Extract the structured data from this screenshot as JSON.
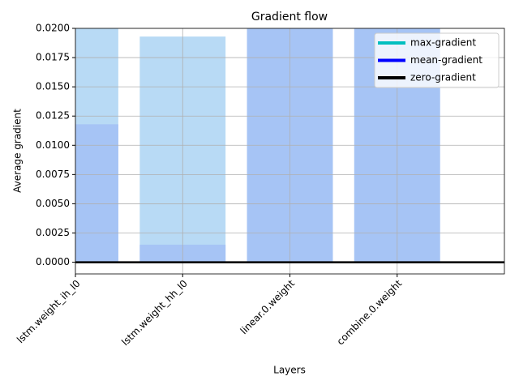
{
  "chart_data": {
    "type": "bar",
    "title": "Gradient flow",
    "x_label": "Layers",
    "y_label": "Average gradient",
    "categories": [
      "lstm.weight_ih_l0",
      "lstm.weight_hh_l0",
      "linear.0.weight",
      "combine.0.weight"
    ],
    "series": [
      {
        "name": "max-gradient",
        "color": "#b8daf5",
        "legend_color": "#00bfbf",
        "values": [
          0.021,
          0.0193,
          0.021,
          0.021
        ]
      },
      {
        "name": "mean-gradient",
        "color": "#a6c4f5",
        "legend_color": "#0000ff",
        "values": [
          0.0118,
          0.0015,
          0.021,
          0.021
        ]
      }
    ],
    "reference_line": {
      "name": "zero-gradient",
      "value": 0,
      "color": "#000000"
    },
    "xlim": [
      0,
      4
    ],
    "ylim": [
      -0.001,
      0.02
    ],
    "yticks": [
      {
        "value": 0,
        "label": "0.0000"
      },
      {
        "value": 0.0025,
        "label": "0.0025"
      },
      {
        "value": 0.005,
        "label": "0.0050"
      },
      {
        "value": 0.0075,
        "label": "0.0075"
      },
      {
        "value": 0.01,
        "label": "0.0100"
      },
      {
        "value": 0.0125,
        "label": "0.0125"
      },
      {
        "value": 0.015,
        "label": "0.0150"
      },
      {
        "value": 0.0175,
        "label": "0.0175"
      },
      {
        "value": 0.02,
        "label": "0.0200"
      }
    ],
    "xticks": [
      0,
      1,
      2,
      3
    ],
    "bar_width": 0.8,
    "grid": true,
    "legend": "upper right"
  }
}
